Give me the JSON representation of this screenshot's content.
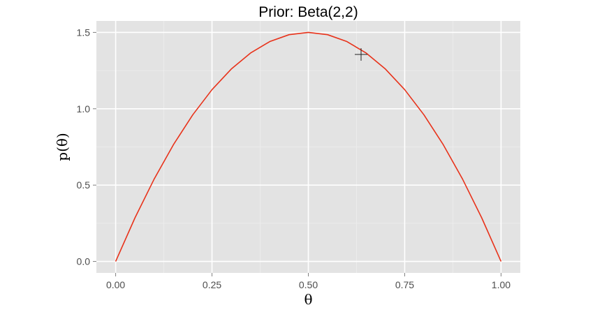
{
  "chart_data": {
    "type": "line",
    "title": "Prior: Beta(2,2)",
    "xlabel": "θ",
    "ylabel": "p(θ)",
    "xlim": [
      -0.05,
      1.05
    ],
    "ylim": [
      -0.075,
      1.575
    ],
    "x_ticks": [
      0.0,
      0.25,
      0.5,
      0.75,
      1.0
    ],
    "x_tick_labels": [
      "0.00",
      "0.25",
      "0.50",
      "0.75",
      "1.00"
    ],
    "y_ticks": [
      0.0,
      0.5,
      1.0,
      1.5
    ],
    "y_tick_labels": [
      "0.0",
      "0.5",
      "1.0",
      "1.5"
    ],
    "grid": true,
    "series": [
      {
        "color": "#e8321a",
        "x": [
          0.0,
          0.05,
          0.1,
          0.15,
          0.2,
          0.25,
          0.3,
          0.35,
          0.4,
          0.45,
          0.5,
          0.55,
          0.6,
          0.65,
          0.7,
          0.75,
          0.8,
          0.85,
          0.9,
          0.95,
          1.0
        ],
        "y": [
          0.0,
          0.285,
          0.54,
          0.765,
          0.96,
          1.125,
          1.26,
          1.365,
          1.44,
          1.485,
          1.5,
          1.485,
          1.44,
          1.365,
          1.26,
          1.125,
          0.96,
          0.765,
          0.54,
          0.285,
          0.0
        ]
      }
    ]
  },
  "colors": {
    "panel_bg": "#e3e3e3",
    "grid_major": "#ffffff",
    "grid_minor": "#eeeeee",
    "tick_text": "#4d4d4d"
  },
  "cursor": {
    "icon": "crosshair-cursor-icon"
  }
}
